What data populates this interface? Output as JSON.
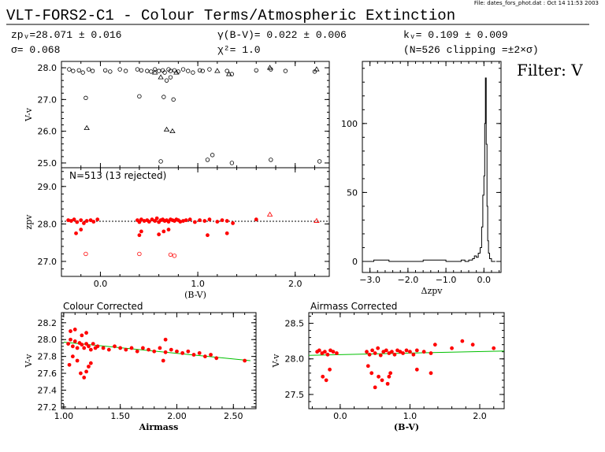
{
  "header": {
    "file_info": "File: dates_fors_phot.dat : Oct 14 11:53 2003",
    "title": "VLT-FORS2-C1 - Colour Terms/Atmospheric Extinction",
    "zp_text": "zpᵥ=28.071 ± 0.016",
    "sigma_text": "σ= 0.068",
    "gamma_text": "γ(B-V)= 0.022 ± 0.006",
    "chi_text": "χ²= 1.0",
    "k_text": "kᵥ= 0.109 ± 0.009",
    "n_text": "(N=526 clipping =±2×σ)",
    "filter_label": "Filter: V"
  },
  "chart_data": [
    {
      "id": "vminusv_vs_bv",
      "type": "scatter",
      "title": "",
      "xlabel": "",
      "ylabel": "V-v",
      "xlim": [
        -0.4,
        2.35
      ],
      "ylim": [
        24.85,
        28.2
      ],
      "yticks": [
        25.0,
        26.0,
        27.0,
        28.0
      ],
      "xticks": [
        0.0,
        1.0,
        2.0
      ],
      "series": [
        {
          "marker": "circle",
          "color": "#000000",
          "x": [
            -0.32,
            -0.28,
            -0.22,
            -0.18,
            -0.12,
            -0.08,
            0.05,
            0.1,
            0.2,
            0.26,
            0.38,
            0.42,
            0.48,
            0.52,
            0.56,
            0.6,
            0.64,
            0.66,
            0.7,
            0.72,
            0.76,
            0.8,
            0.85,
            0.9,
            0.95,
            1.02,
            1.05,
            1.12,
            1.3,
            1.35,
            1.6,
            1.75,
            1.9,
            2.2,
            -0.15,
            0.4,
            0.65,
            0.75,
            0.62,
            1.1,
            1.15,
            1.35,
            1.75,
            2.25,
            0.68,
            0.72
          ],
          "y": [
            27.95,
            27.9,
            27.92,
            27.85,
            27.95,
            27.9,
            27.92,
            27.88,
            27.95,
            27.9,
            27.95,
            27.92,
            27.9,
            27.88,
            27.95,
            27.9,
            27.92,
            27.85,
            27.95,
            27.9,
            27.92,
            27.88,
            27.95,
            27.9,
            27.85,
            27.92,
            27.9,
            27.95,
            27.9,
            27.8,
            27.92,
            27.95,
            27.9,
            27.88,
            27.05,
            27.1,
            27.08,
            27.0,
            25.05,
            25.1,
            25.25,
            25.0,
            25.1,
            25.05,
            27.6,
            27.7
          ]
        },
        {
          "marker": "triangle",
          "color": "#000000",
          "x": [
            -0.14,
            0.68,
            0.74,
            0.78,
            1.2,
            1.32,
            1.74,
            2.22,
            0.56,
            0.62
          ],
          "y": [
            26.1,
            26.05,
            26.0,
            27.85,
            27.9,
            27.8,
            28.0,
            27.95,
            27.85,
            27.7
          ]
        }
      ]
    },
    {
      "id": "zp_vs_bv",
      "type": "scatter",
      "title": "",
      "xlabel": "(B-V)",
      "ylabel": "zpv",
      "annotation": "N=513 (13 rejected)",
      "xlim": [
        -0.4,
        2.35
      ],
      "ylim": [
        26.6,
        29.5
      ],
      "yticks": [
        27.0,
        28.0,
        29.0
      ],
      "xticks": [
        0.0,
        1.0,
        2.0
      ],
      "xticklabels": [
        "0.0",
        "1.0",
        "2.0"
      ],
      "reference_line": 28.071,
      "series": [
        {
          "marker": "filled-circle",
          "color": "#ff0000",
          "x": [
            -0.33,
            -0.3,
            -0.27,
            -0.24,
            -0.2,
            -0.17,
            -0.14,
            -0.1,
            -0.07,
            -0.03,
            0.38,
            0.4,
            0.42,
            0.45,
            0.48,
            0.5,
            0.53,
            0.56,
            0.58,
            0.6,
            0.62,
            0.64,
            0.66,
            0.68,
            0.7,
            0.72,
            0.74,
            0.76,
            0.78,
            0.8,
            0.82,
            0.85,
            0.88,
            0.92,
            0.97,
            1.02,
            1.07,
            1.12,
            1.2,
            1.25,
            1.3,
            1.36,
            1.6,
            -0.25,
            -0.2,
            0.4,
            0.42,
            0.6,
            0.65,
            0.7,
            1.1,
            1.3
          ],
          "y": [
            28.1,
            28.08,
            28.12,
            28.05,
            28.1,
            28.02,
            28.08,
            28.1,
            28.06,
            28.12,
            28.1,
            28.05,
            28.12,
            28.08,
            28.1,
            28.06,
            28.12,
            28.08,
            28.15,
            28.05,
            28.1,
            28.12,
            28.08,
            28.1,
            28.06,
            28.12,
            28.1,
            28.08,
            28.12,
            28.1,
            28.06,
            28.08,
            28.1,
            28.12,
            28.05,
            28.1,
            28.08,
            28.12,
            28.06,
            28.1,
            28.08,
            28.02,
            28.12,
            27.75,
            27.85,
            27.7,
            27.8,
            27.72,
            27.8,
            27.85,
            27.7,
            27.75
          ]
        },
        {
          "marker": "open-circle",
          "color": "#ff0000",
          "x": [
            -0.15,
            0.4,
            0.72,
            0.76
          ],
          "y": [
            27.2,
            27.2,
            27.18,
            27.15
          ]
        },
        {
          "marker": "triangle",
          "color": "#ff0000",
          "x": [
            1.74,
            2.22
          ],
          "y": [
            28.25,
            28.08
          ]
        }
      ]
    },
    {
      "id": "dzp_histogram",
      "type": "line",
      "title": "",
      "xlabel": "Δzpv",
      "ylabel": "",
      "xlim": [
        -3.2,
        0.45
      ],
      "ylim": [
        -8,
        145
      ],
      "xticks": [
        -3.0,
        -2.0,
        -1.0,
        0.0
      ],
      "xticklabels": [
        "−3.0",
        "−2.0",
        "−1.0",
        "0.0"
      ],
      "yticks": [
        0,
        50,
        100
      ],
      "x": [
        -3.1,
        -2.9,
        -2.5,
        -2.0,
        -1.6,
        -1.0,
        -0.6,
        -0.5,
        -0.4,
        -0.3,
        -0.25,
        -0.2,
        -0.15,
        -0.1,
        -0.06,
        -0.03,
        0.0,
        0.02,
        0.04,
        0.06,
        0.08,
        0.1,
        0.12,
        0.15,
        0.2,
        0.3
      ],
      "values": [
        0,
        1,
        0,
        0,
        1,
        0,
        1,
        0,
        1,
        2,
        4,
        3,
        6,
        10,
        25,
        48,
        62,
        100,
        133,
        85,
        40,
        15,
        6,
        2,
        0,
        0
      ]
    },
    {
      "id": "colour_corrected",
      "type": "scatter",
      "title": "Colour Corrected",
      "xlabel": "Airmass",
      "ylabel": "V-v",
      "xlim": [
        0.98,
        2.7
      ],
      "ylim": [
        27.18,
        28.32
      ],
      "yticks": [
        27.2,
        27.4,
        27.6,
        27.8,
        28.0,
        28.2
      ],
      "xticks": [
        1.0,
        1.5,
        2.0,
        2.5
      ],
      "xticklabels": [
        "1.00",
        "1.50",
        "2.00",
        "2.50"
      ],
      "fit_line": {
        "x": [
          1.0,
          2.65
        ],
        "y": [
          27.97,
          27.75
        ],
        "color": "#00c000"
      },
      "series": [
        {
          "marker": "filled-circle",
          "color": "#ff0000",
          "x": [
            1.04,
            1.06,
            1.08,
            1.1,
            1.12,
            1.14,
            1.16,
            1.18,
            1.2,
            1.22,
            1.24,
            1.26,
            1.28,
            1.3,
            1.35,
            1.4,
            1.45,
            1.5,
            1.55,
            1.6,
            1.65,
            1.7,
            1.75,
            1.8,
            1.85,
            1.9,
            1.95,
            2.0,
            2.05,
            2.1,
            2.15,
            2.2,
            2.25,
            2.3,
            2.35,
            2.6,
            1.05,
            1.08,
            1.12,
            1.15,
            1.18,
            1.2,
            1.22,
            1.24,
            1.06,
            1.1,
            1.16,
            1.2,
            1.9,
            1.88
          ],
          "y": [
            27.95,
            28.0,
            27.92,
            27.98,
            27.9,
            27.96,
            27.94,
            27.9,
            27.95,
            27.92,
            27.88,
            27.95,
            27.9,
            27.92,
            27.9,
            27.88,
            27.92,
            27.9,
            27.88,
            27.9,
            27.86,
            27.9,
            27.88,
            27.86,
            27.9,
            27.85,
            27.88,
            27.86,
            27.84,
            27.86,
            27.82,
            27.84,
            27.8,
            27.82,
            27.78,
            27.75,
            27.7,
            27.8,
            27.75,
            27.6,
            27.55,
            27.62,
            27.68,
            27.72,
            28.1,
            28.12,
            28.05,
            28.08,
            28.0,
            27.75
          ]
        }
      ]
    },
    {
      "id": "airmass_corrected",
      "type": "scatter",
      "title": "Airmass Corrected",
      "xlabel": "(B-V)",
      "ylabel": "V-v",
      "xlim": [
        -0.45,
        2.35
      ],
      "ylim": [
        27.3,
        28.65
      ],
      "yticks": [
        27.5,
        28.0,
        28.5
      ],
      "xticks": [
        0.0,
        1.0,
        2.0
      ],
      "xticklabels": [
        "0.0",
        "1.0",
        "2.0"
      ],
      "fit_line": {
        "x": [
          -0.45,
          2.35
        ],
        "y": [
          28.05,
          28.11
        ],
        "color": "#00c000"
      },
      "series": [
        {
          "marker": "filled-circle",
          "color": "#ff0000",
          "x": [
            -0.33,
            -0.3,
            -0.26,
            -0.22,
            -0.18,
            -0.14,
            -0.1,
            -0.05,
            0.38,
            0.42,
            0.46,
            0.5,
            0.54,
            0.58,
            0.62,
            0.66,
            0.7,
            0.74,
            0.78,
            0.82,
            0.86,
            0.9,
            0.95,
            1.0,
            1.05,
            1.1,
            1.2,
            1.3,
            1.36,
            1.6,
            1.75,
            1.9,
            2.2,
            -0.25,
            -0.15,
            0.4,
            0.45,
            0.55,
            0.6,
            0.68,
            0.72,
            1.1,
            1.3,
            -0.2,
            0.5,
            0.7
          ],
          "y": [
            28.1,
            28.12,
            28.08,
            28.1,
            28.06,
            28.12,
            28.1,
            28.08,
            28.1,
            28.06,
            28.12,
            28.08,
            28.15,
            28.05,
            28.1,
            28.12,
            28.08,
            28.1,
            28.06,
            28.12,
            28.1,
            28.08,
            28.12,
            28.1,
            28.06,
            28.12,
            28.1,
            28.08,
            28.2,
            28.15,
            28.25,
            28.2,
            28.15,
            27.75,
            27.85,
            27.9,
            27.8,
            27.75,
            27.7,
            27.65,
            27.8,
            27.85,
            27.8,
            27.7,
            27.6,
            27.75
          ]
        }
      ]
    }
  ]
}
